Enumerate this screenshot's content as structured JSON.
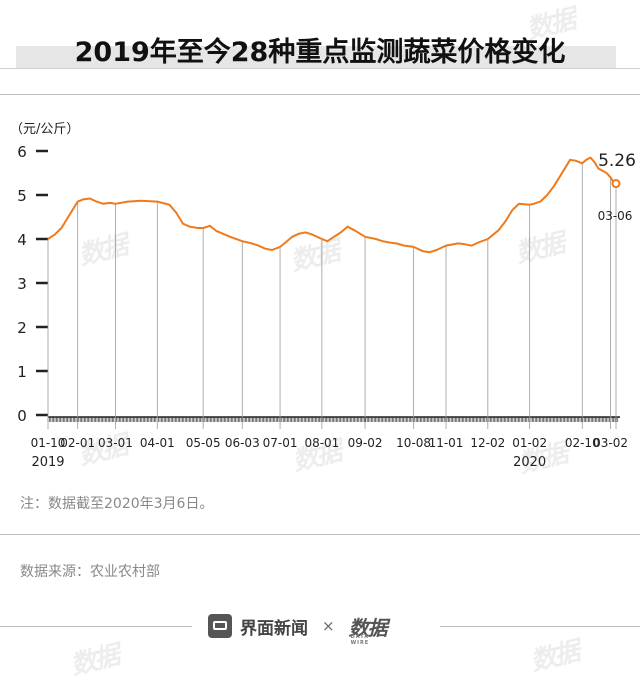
{
  "title": "2019年至今28种重点监测蔬菜价格变化",
  "note": "注：数据截至2020年3月6日。",
  "source": "数据来源：农业农村部",
  "footer": {
    "brand": "界面新闻",
    "times": "×",
    "logo": "数据",
    "logo_sub": "DATA WIRE"
  },
  "watermark": "数据",
  "colors": {
    "line": "#f07a1a",
    "axis": "#222222",
    "guide": "#9a9a9a"
  },
  "chart_data": {
    "type": "line",
    "ylabel": "（元/公斤）",
    "ylim": [
      0,
      6
    ],
    "yticks": [
      0,
      1,
      2,
      3,
      4,
      5,
      6
    ],
    "x_tick_labels": [
      "01-10",
      "02-01",
      "03-01",
      "04-01",
      "05-05",
      "06-03",
      "07-01",
      "08-01",
      "09-02",
      "10-08",
      "11-01",
      "12-02",
      "01-02",
      "02-10",
      "03-02"
    ],
    "year_labels": [
      {
        "label": "2019",
        "under": "01-10"
      },
      {
        "label": "2020",
        "under": "01-02"
      }
    ],
    "end_label": {
      "value": "5.26",
      "date": "03-06"
    },
    "series": [
      {
        "x": [
          "2019-01-10",
          "2019-01-15",
          "2019-01-20",
          "2019-01-25",
          "2019-02-01",
          "2019-02-05",
          "2019-02-10",
          "2019-02-15",
          "2019-02-20",
          "2019-02-25",
          "2019-03-01",
          "2019-03-10",
          "2019-03-20",
          "2019-04-01",
          "2019-04-10",
          "2019-04-15",
          "2019-04-20",
          "2019-04-25",
          "2019-05-01",
          "2019-05-05",
          "2019-05-10",
          "2019-05-15",
          "2019-05-25",
          "2019-06-03",
          "2019-06-10",
          "2019-06-15",
          "2019-06-20",
          "2019-06-25",
          "2019-07-01",
          "2019-07-05",
          "2019-07-10",
          "2019-07-15",
          "2019-07-20",
          "2019-07-25",
          "2019-08-01",
          "2019-08-05",
          "2019-08-10",
          "2019-08-15",
          "2019-08-20",
          "2019-08-25",
          "2019-09-02",
          "2019-09-10",
          "2019-09-15",
          "2019-09-20",
          "2019-09-25",
          "2019-10-01",
          "2019-10-08",
          "2019-10-15",
          "2019-10-20",
          "2019-10-25",
          "2019-11-01",
          "2019-11-10",
          "2019-11-15",
          "2019-11-20",
          "2019-11-25",
          "2019-12-02",
          "2019-12-10",
          "2019-12-15",
          "2019-12-20",
          "2019-12-25",
          "2020-01-02",
          "2020-01-05",
          "2020-01-10",
          "2020-01-15",
          "2020-01-20",
          "2020-01-25",
          "2020-02-01",
          "2020-02-05",
          "2020-02-10",
          "2020-02-13",
          "2020-02-16",
          "2020-02-19",
          "2020-02-22",
          "2020-02-25",
          "2020-02-28",
          "2020-03-02",
          "2020-03-04",
          "2020-03-06"
        ],
        "y": [
          4.0,
          4.1,
          4.25,
          4.5,
          4.85,
          4.9,
          4.92,
          4.85,
          4.8,
          4.82,
          4.8,
          4.85,
          4.87,
          4.85,
          4.78,
          4.6,
          4.35,
          4.28,
          4.25,
          4.25,
          4.3,
          4.18,
          4.05,
          3.95,
          3.9,
          3.85,
          3.78,
          3.75,
          3.82,
          3.92,
          4.05,
          4.12,
          4.15,
          4.1,
          4.0,
          3.95,
          4.05,
          4.15,
          4.28,
          4.2,
          4.05,
          4.0,
          3.95,
          3.92,
          3.9,
          3.85,
          3.82,
          3.72,
          3.7,
          3.75,
          3.85,
          3.9,
          3.88,
          3.85,
          3.92,
          4.0,
          4.2,
          4.4,
          4.65,
          4.8,
          4.78,
          4.8,
          4.85,
          5.0,
          5.2,
          5.45,
          5.8,
          5.78,
          5.72,
          5.8,
          5.85,
          5.75,
          5.6,
          5.55,
          5.5,
          5.4,
          5.3,
          5.26
        ]
      }
    ]
  }
}
